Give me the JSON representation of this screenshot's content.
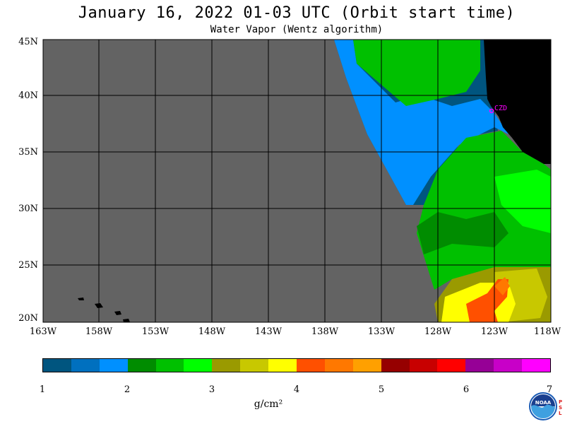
{
  "title": "January 16, 2022  01-03 UTC  (Orbit start time)",
  "subtitle": "Water Vapor (Wentz algorithm)",
  "map": {
    "lat_labels": [
      "45N",
      "40N",
      "35N",
      "30N",
      "25N",
      "20N"
    ],
    "lon_labels": [
      "163W",
      "158W",
      "153W",
      "148W",
      "143W",
      "138W",
      "133W",
      "128W",
      "123W",
      "118W"
    ],
    "station_label": "CZD",
    "colors": {
      "no_data": "#636363",
      "land": "#000000",
      "station": "#ff00ff"
    }
  },
  "colorbar": {
    "tick_labels": [
      "1",
      "2",
      "3",
      "4",
      "5",
      "6",
      "7"
    ],
    "units": "g/cm²",
    "colors": [
      "#00557f",
      "#0070bf",
      "#0090ff",
      "#008c00",
      "#00c000",
      "#00ff00",
      "#9a9a00",
      "#c8c800",
      "#ffff00",
      "#ff5000",
      "#ff7800",
      "#ffa000",
      "#960000",
      "#c80000",
      "#ff0000",
      "#960096",
      "#c800c8",
      "#ff00ff"
    ]
  },
  "logo": {
    "name": "NOAA",
    "side_text": "PSL"
  }
}
